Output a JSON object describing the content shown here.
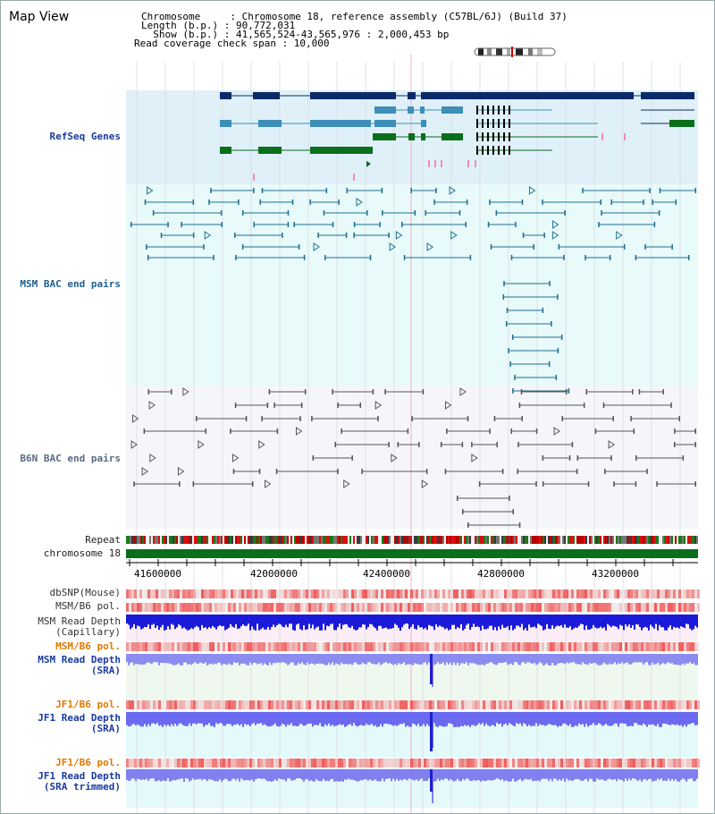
{
  "view_title": "Map View",
  "info": {
    "chromosome_line": "Chromosome     : Chromosome 18, reference assembly (C57BL/6J) (Build 37)",
    "length_line": "Length (b.p.) : 90,772,031",
    "show_line": "  Show (b.p.) : 41,565,524-43,565,976 : 2,000,453 bp",
    "coverage_line": "Read coverage check span : 10,000"
  },
  "tracks": {
    "refseq": {
      "label": "RefSeq Genes",
      "color": "#1a3a9a"
    },
    "msm_bac": {
      "label": "MSM BAC end pairs",
      "color": "#1f5f8f"
    },
    "b6n_bac": {
      "label": "B6N BAC end pairs",
      "color": "#5a6a80"
    },
    "repeat": {
      "label": "Repeat"
    },
    "chromosome": {
      "label": "chromosome 18"
    },
    "dbsnp": {
      "label": "dbSNP(Mouse)"
    },
    "msm_b6_pol_1": {
      "label": "MSM/B6 pol."
    },
    "msm_depth_cap": {
      "label_1": "MSM Read Depth",
      "label_2": "(Capillary)"
    },
    "msm_b6_pol_2": {
      "label": "MSM/B6 pol.",
      "color": "#e07800"
    },
    "msm_depth_sra": {
      "label_1": "MSM Read Depth",
      "label_2": "(SRA)",
      "color": "#1a3aa0"
    },
    "jf1_b6_pol_1": {
      "label": "JF1/B6 pol.",
      "color": "#e07800"
    },
    "jf1_depth_sra": {
      "label_1": "JF1 Read Depth",
      "label_2": "(SRA)",
      "color": "#1a3aa0"
    },
    "jf1_b6_pol_2": {
      "label": "JF1/B6 pol.",
      "color": "#e07800"
    },
    "jf1_depth_trim": {
      "label_1": "JF1 Read Depth",
      "label_2": "(SRA trimmed)",
      "color": "#1a3aa0"
    }
  },
  "axis_ticks": [
    "41600000",
    "42000000",
    "42400000",
    "42800000",
    "43200000"
  ]
}
